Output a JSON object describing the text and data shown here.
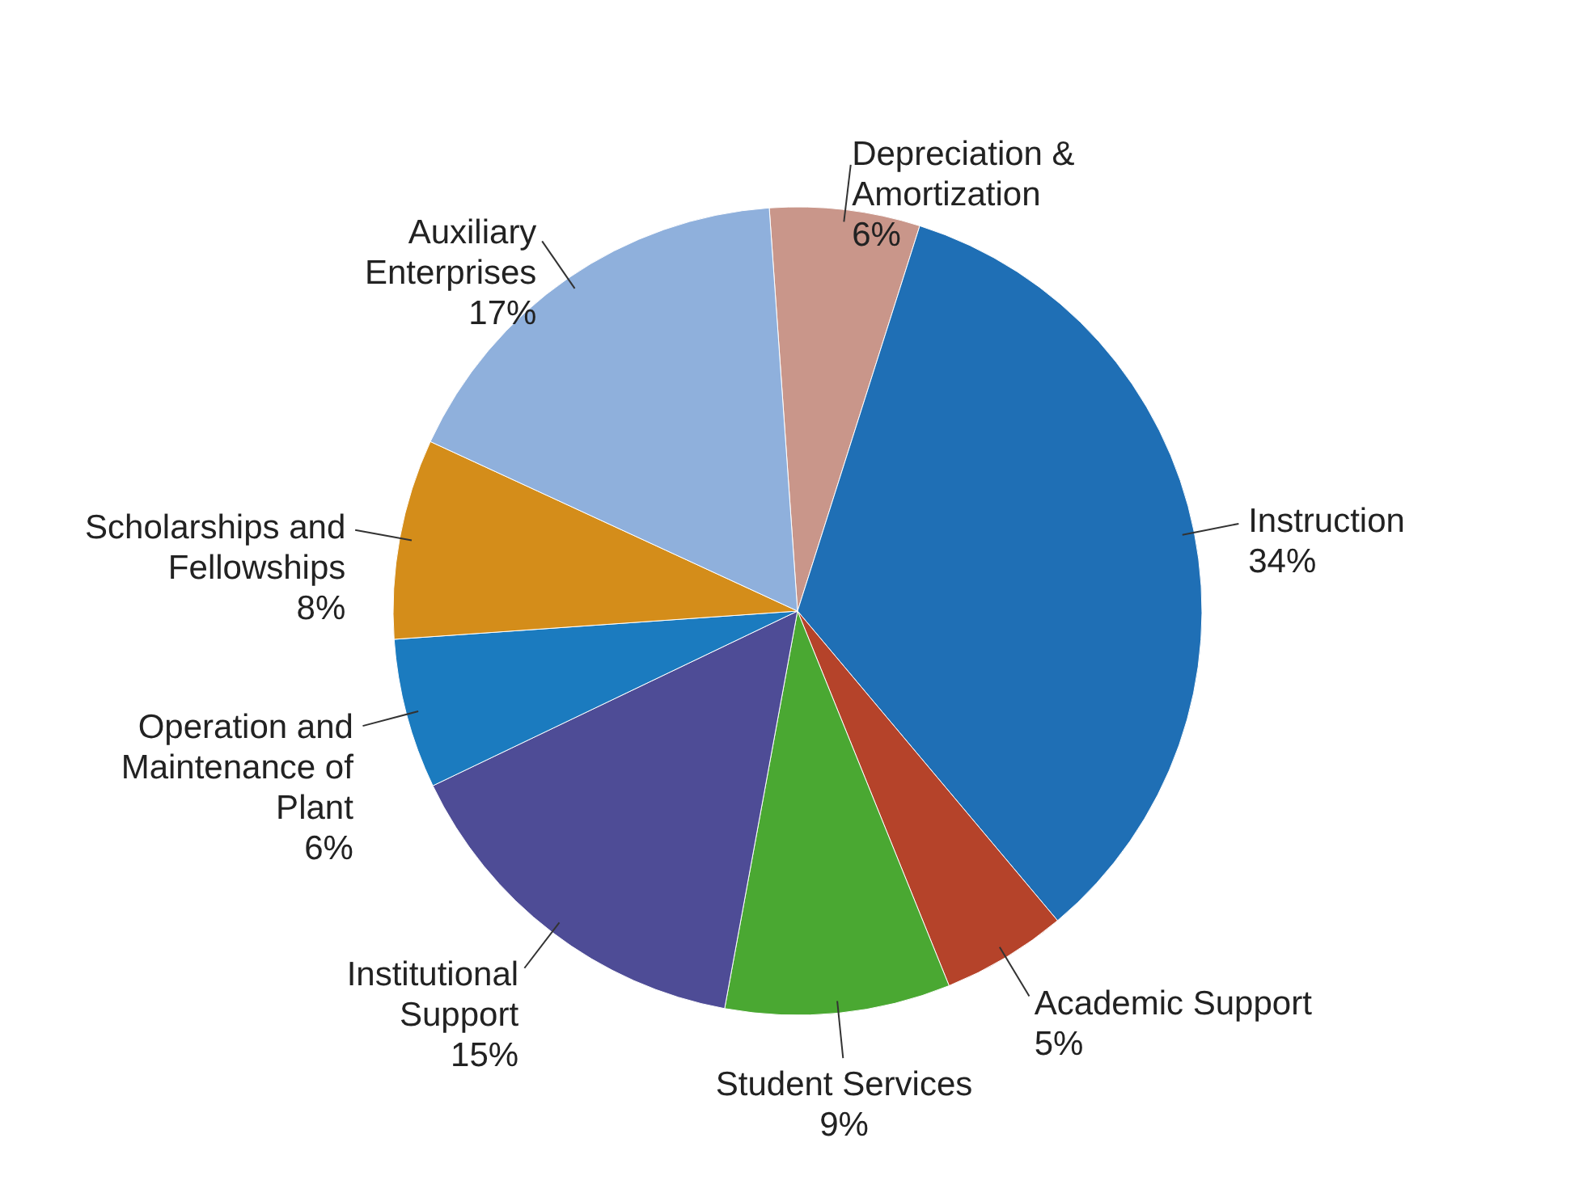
{
  "chart_data": {
    "type": "pie",
    "categories": [
      "Depreciation & Amortization",
      "Instruction",
      "Academic Support",
      "Student Services",
      "Institutional Support",
      "Operation and Maintenance of Plant",
      "Scholarships and Fellowships",
      "Auxiliary Enterprises"
    ],
    "values": [
      6,
      34,
      5,
      9,
      15,
      6,
      8,
      17
    ],
    "value_labels": [
      "6%",
      "34%",
      "5%",
      "9%",
      "15%",
      "6%",
      "8%",
      "17%"
    ],
    "colors": [
      "#c9968a",
      "#1f6fb5",
      "#b5432a",
      "#4aa832",
      "#4e4c96",
      "#1b7bbf",
      "#d48d1a",
      "#8fb0dc"
    ],
    "data_labels": true
  }
}
